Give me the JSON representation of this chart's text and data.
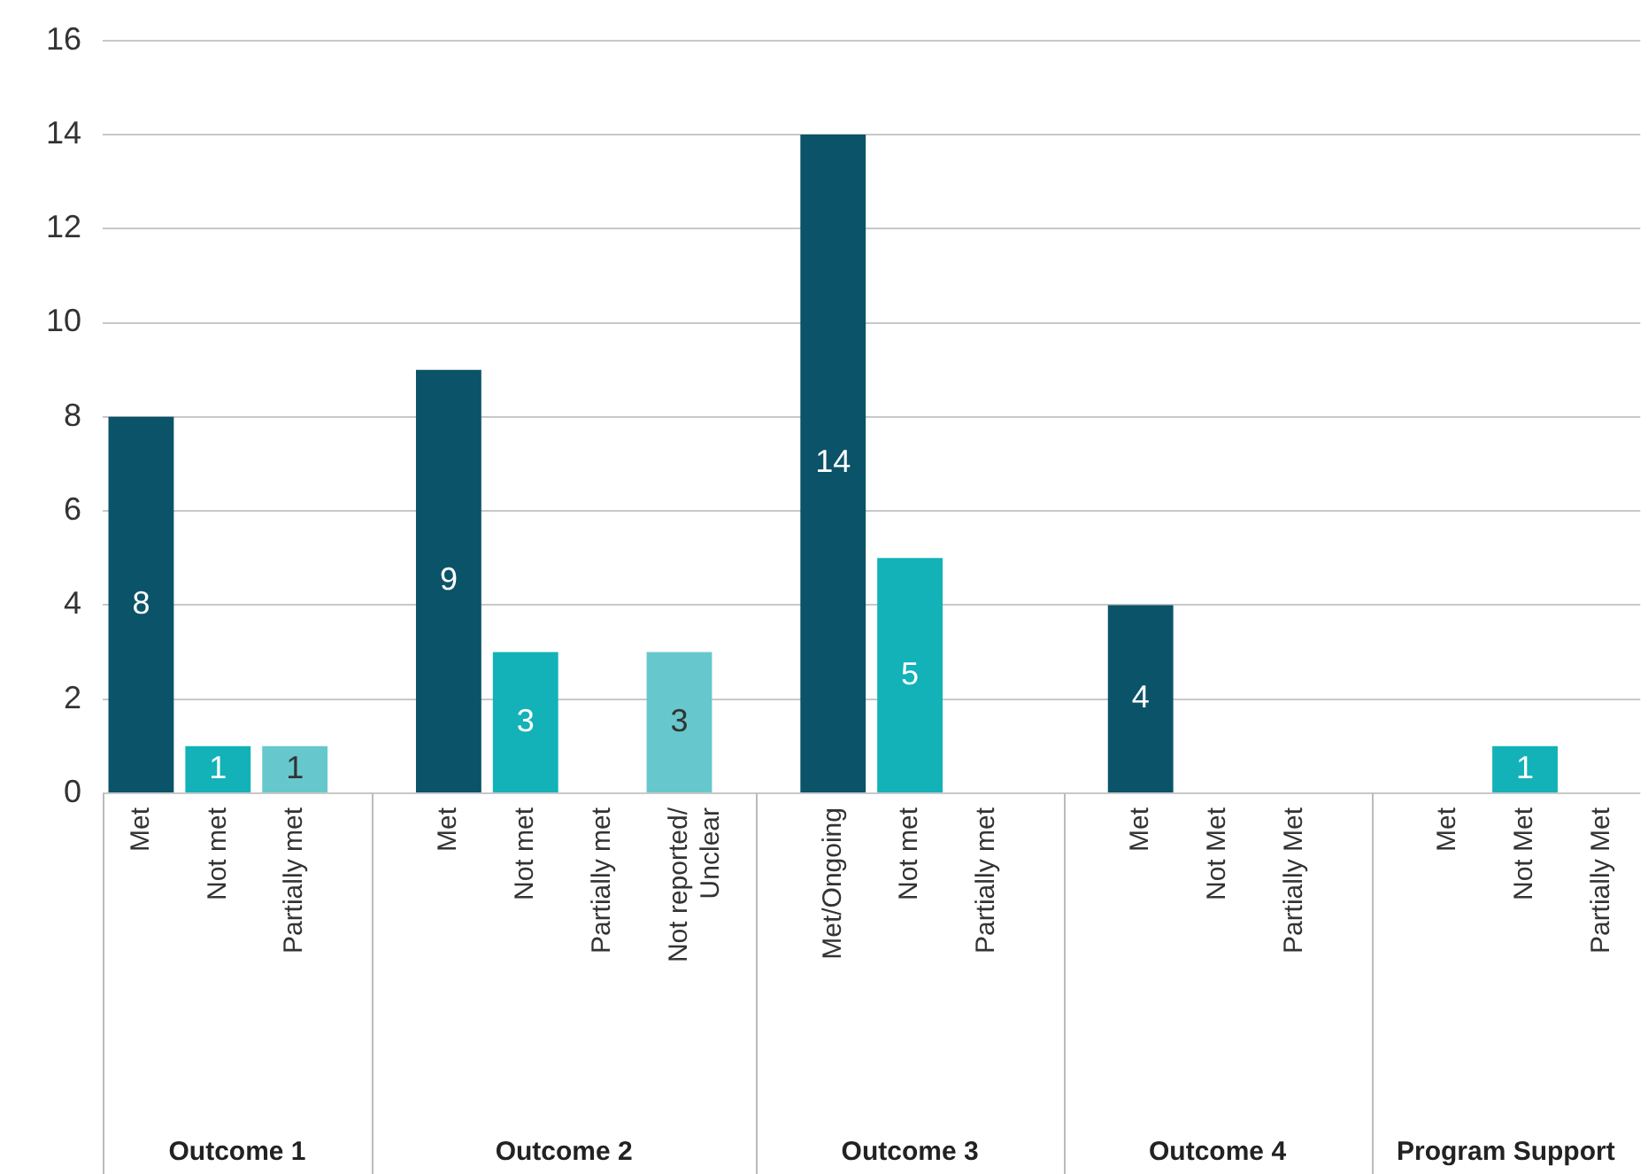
{
  "chart_data": {
    "type": "bar",
    "categories": [
      "Met",
      "Not met",
      "Partially met",
      null,
      "Met",
      "Not met",
      "Partially met",
      "Not reported/ Unclear",
      null,
      "Met/Ongoing",
      "Not met",
      "Partially met",
      null,
      "Met",
      "Not Met",
      "Partially Met",
      null,
      "Met",
      "Not Met",
      "Partially Met"
    ],
    "values": [
      8,
      1,
      1,
      null,
      9,
      3,
      null,
      3,
      null,
      14,
      5,
      null,
      null,
      4,
      null,
      null,
      null,
      null,
      1,
      null
    ],
    "colors": [
      "#0b5368",
      "#12b2b8",
      "#66c8cd",
      null,
      "#0b5368",
      "#12b2b8",
      "#66c8cd",
      "#66c8cd",
      null,
      "#0b5368",
      "#12b2b8",
      "#66c8cd",
      null,
      "#0b5368",
      "#12b2b8",
      "#66c8cd",
      null,
      "#0b5368",
      "#12b2b8",
      "#66c8cd"
    ],
    "ylim": [
      0,
      16
    ],
    "yticks": [
      0,
      2,
      4,
      6,
      8,
      10,
      12,
      14,
      16
    ],
    "grid": "y",
    "legend": false,
    "data_labels": true,
    "annotations": [
      "Outcome 1",
      "Outcome 2",
      "Outcome 3",
      "Outcome 4",
      "Program Support"
    ]
  }
}
